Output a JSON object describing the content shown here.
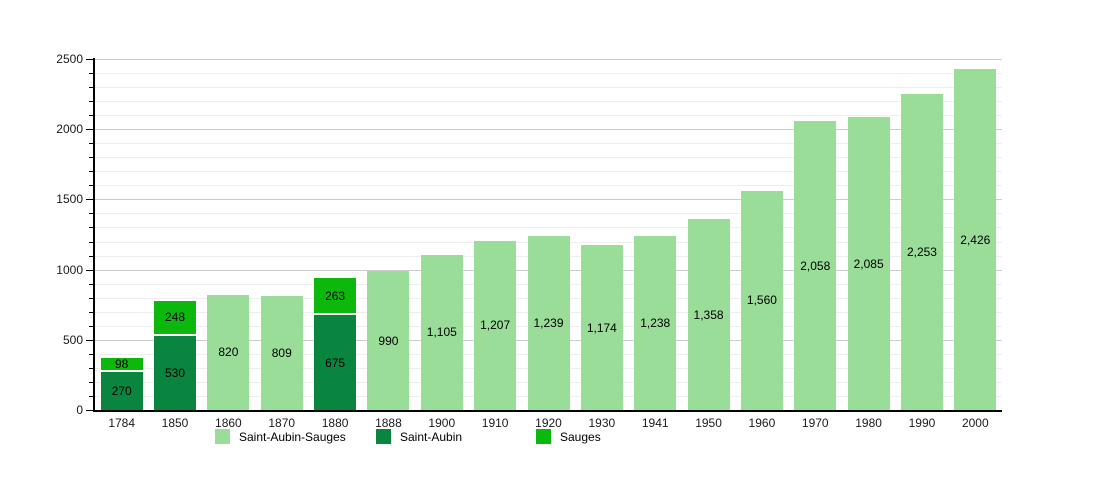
{
  "chart_data": {
    "type": "bar",
    "stacked": true,
    "title": "",
    "xlabel": "",
    "ylabel": "",
    "ylim": [
      0,
      2500
    ],
    "ytick_step": 500,
    "minor_step": 100,
    "grid": true,
    "legend_position": "bottom",
    "yticks": [
      "0",
      "500",
      "1000",
      "1500",
      "2000",
      "2500"
    ],
    "categories": [
      "1784",
      "1850",
      "1860",
      "1870",
      "1880",
      "1888",
      "1900",
      "1910",
      "1920",
      "1930",
      "1941",
      "1950",
      "1960",
      "1970",
      "1980",
      "1990",
      "2000"
    ],
    "series": [
      {
        "name": "Saint-Aubin-Sauges",
        "color": "#99dd99"
      },
      {
        "name": "Saint-Aubin",
        "color": "#0a8540"
      },
      {
        "name": "Sauges",
        "color": "#0cb80c"
      }
    ],
    "bars": [
      {
        "year": "1784",
        "segments": [
          {
            "series": "Saint-Aubin",
            "value": 270,
            "label": "270"
          },
          {
            "series": "Sauges",
            "value": 98,
            "label": "98"
          }
        ]
      },
      {
        "year": "1850",
        "segments": [
          {
            "series": "Saint-Aubin",
            "value": 530,
            "label": "530"
          },
          {
            "series": "Sauges",
            "value": 248,
            "label": "248"
          }
        ]
      },
      {
        "year": "1860",
        "segments": [
          {
            "series": "Saint-Aubin-Sauges",
            "value": 820,
            "label": "820"
          }
        ]
      },
      {
        "year": "1870",
        "segments": [
          {
            "series": "Saint-Aubin-Sauges",
            "value": 809,
            "label": "809"
          }
        ]
      },
      {
        "year": "1880",
        "segments": [
          {
            "series": "Saint-Aubin",
            "value": 675,
            "label": "675"
          },
          {
            "series": "Sauges",
            "value": 263,
            "label": "263"
          }
        ]
      },
      {
        "year": "1888",
        "segments": [
          {
            "series": "Saint-Aubin-Sauges",
            "value": 990,
            "label": "990"
          }
        ]
      },
      {
        "year": "1900",
        "segments": [
          {
            "series": "Saint-Aubin-Sauges",
            "value": 1105,
            "label": "1,105"
          }
        ]
      },
      {
        "year": "1910",
        "segments": [
          {
            "series": "Saint-Aubin-Sauges",
            "value": 1207,
            "label": "1,207"
          }
        ]
      },
      {
        "year": "1920",
        "segments": [
          {
            "series": "Saint-Aubin-Sauges",
            "value": 1239,
            "label": "1,239"
          }
        ]
      },
      {
        "year": "1930",
        "segments": [
          {
            "series": "Saint-Aubin-Sauges",
            "value": 1174,
            "label": "1,174"
          }
        ]
      },
      {
        "year": "1941",
        "segments": [
          {
            "series": "Saint-Aubin-Sauges",
            "value": 1238,
            "label": "1,238"
          }
        ]
      },
      {
        "year": "1950",
        "segments": [
          {
            "series": "Saint-Aubin-Sauges",
            "value": 1358,
            "label": "1,358"
          }
        ]
      },
      {
        "year": "1960",
        "segments": [
          {
            "series": "Saint-Aubin-Sauges",
            "value": 1560,
            "label": "1,560"
          }
        ]
      },
      {
        "year": "1970",
        "segments": [
          {
            "series": "Saint-Aubin-Sauges",
            "value": 2058,
            "label": "2,058"
          }
        ]
      },
      {
        "year": "1980",
        "segments": [
          {
            "series": "Saint-Aubin-Sauges",
            "value": 2085,
            "label": "2,085"
          }
        ]
      },
      {
        "year": "1990",
        "segments": [
          {
            "series": "Saint-Aubin-Sauges",
            "value": 2253,
            "label": "2,253"
          }
        ]
      },
      {
        "year": "2000",
        "segments": [
          {
            "series": "Saint-Aubin-Sauges",
            "value": 2426,
            "label": "2,426"
          }
        ]
      }
    ]
  }
}
